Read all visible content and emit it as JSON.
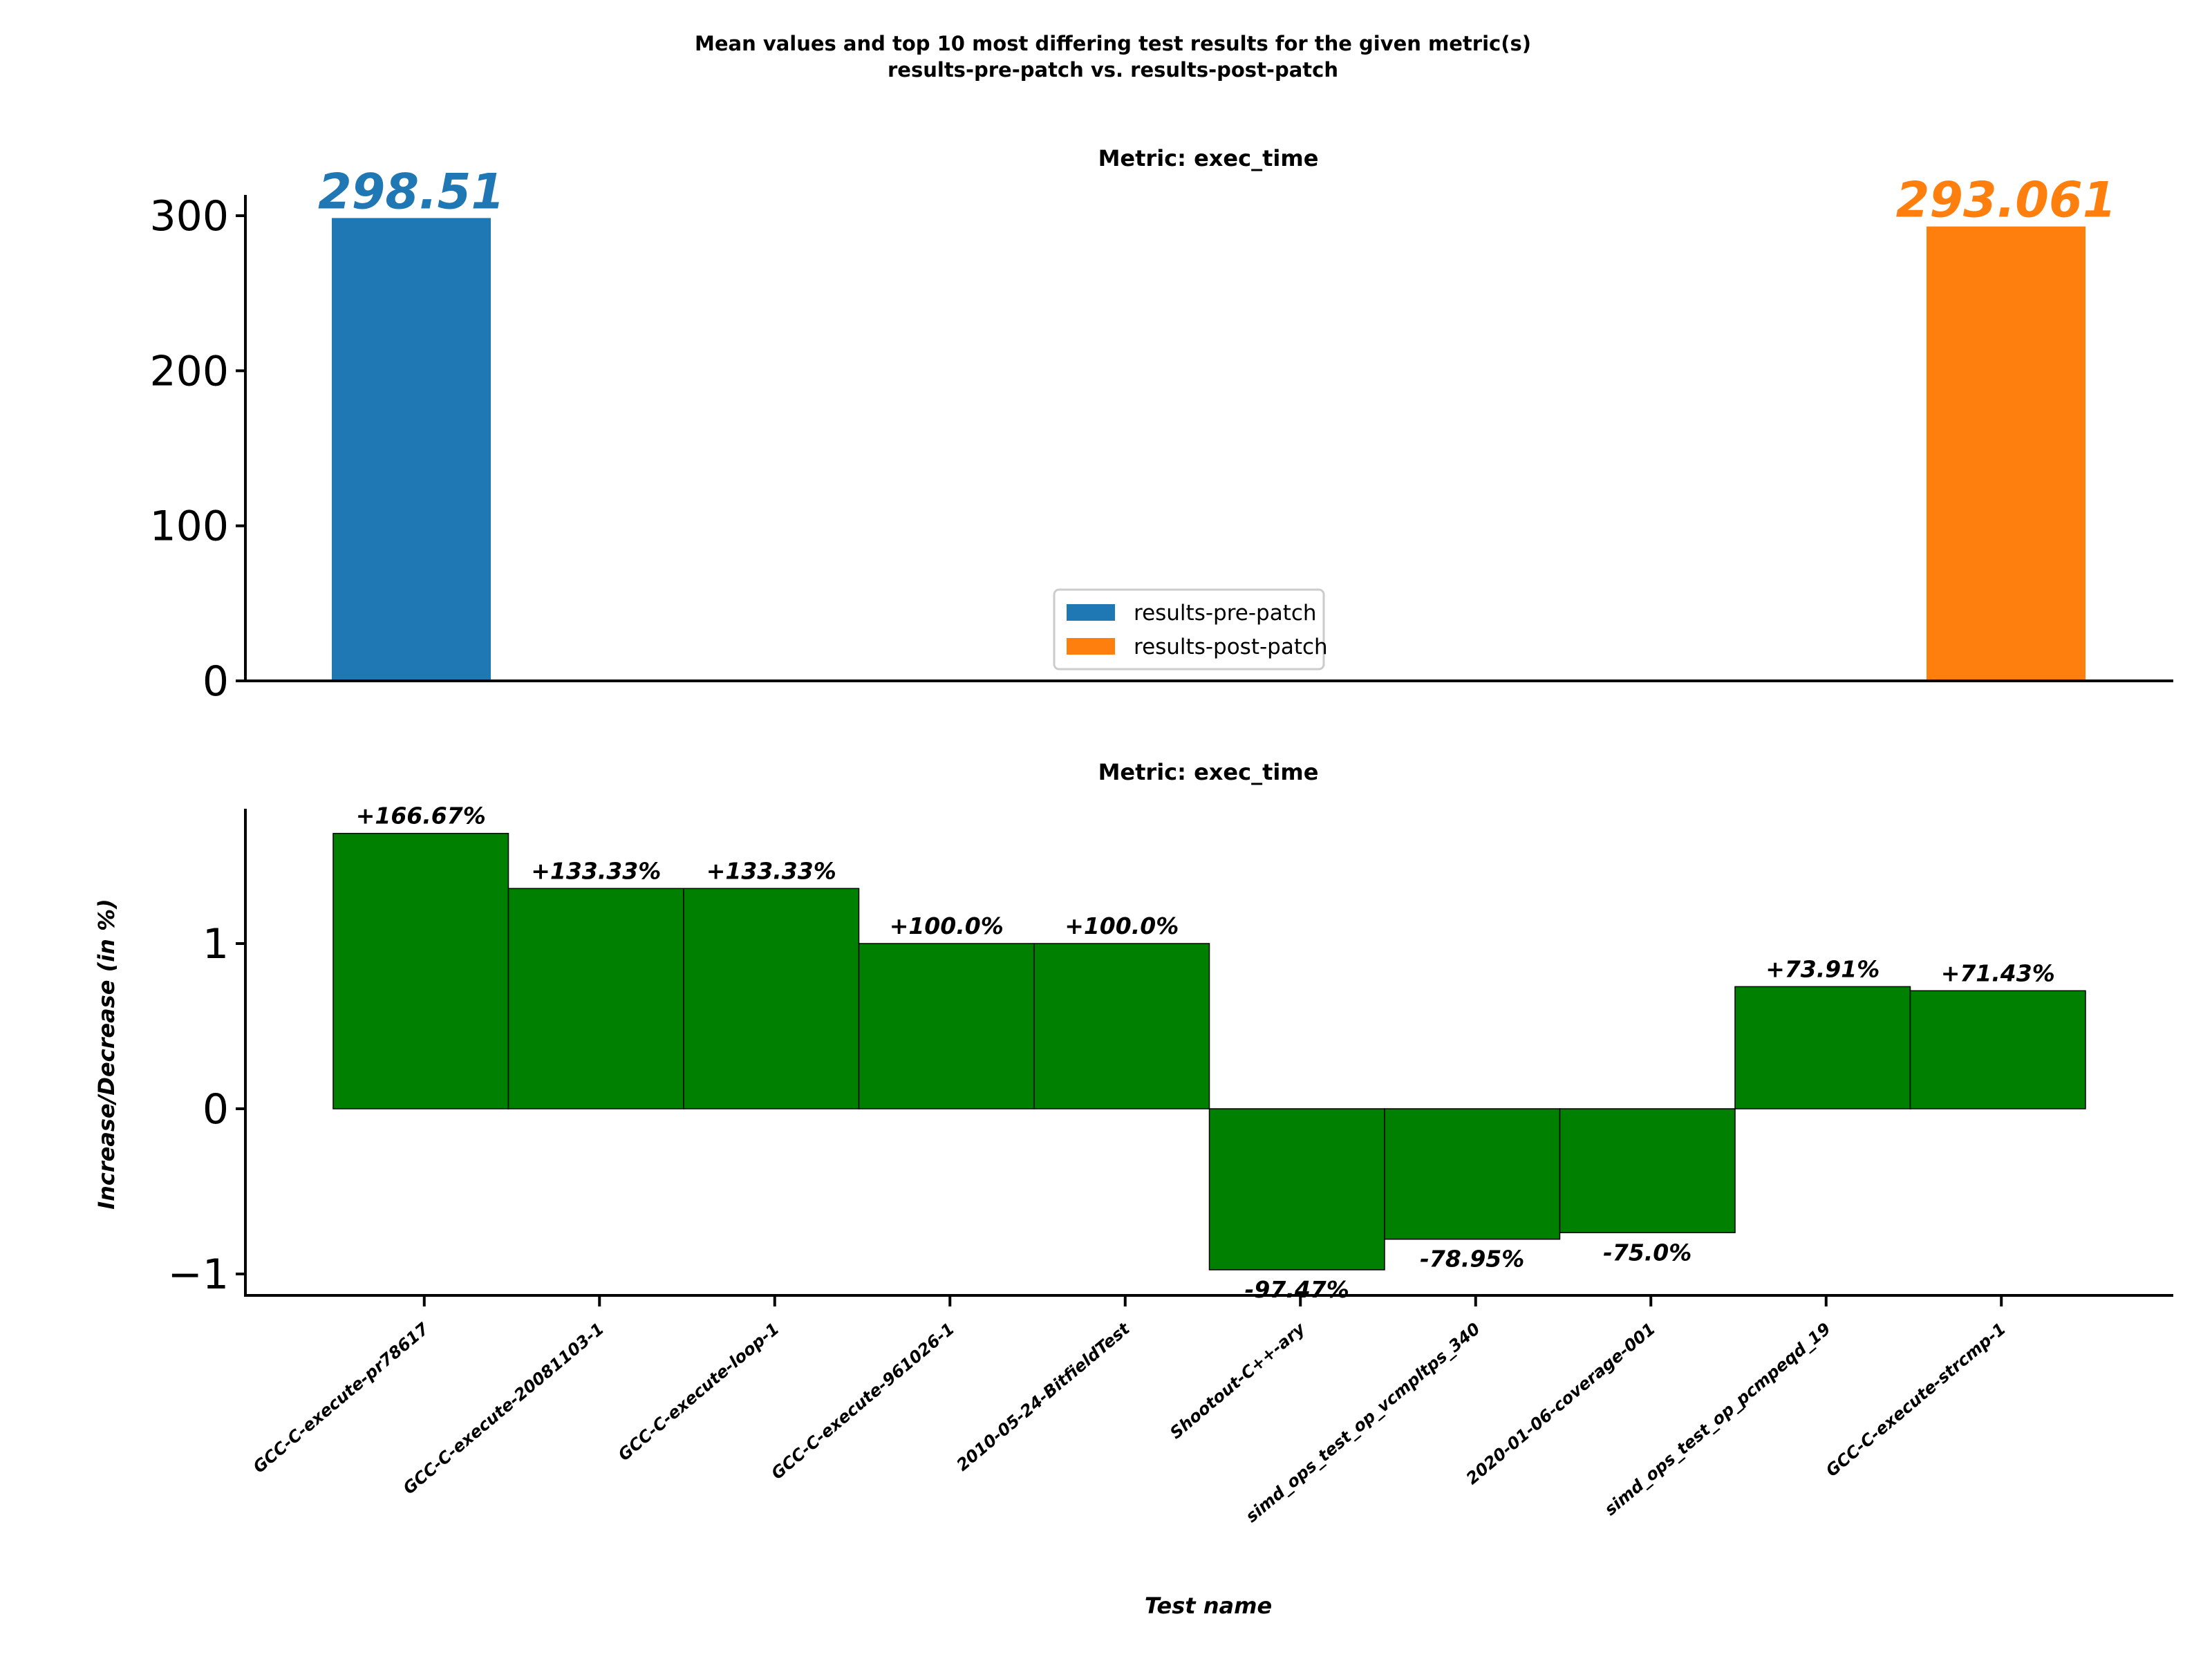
{
  "title_line1": "Mean values and top 10 most differing test results for the given metric(s)",
  "title_line2": "results-pre-patch vs. results-post-patch",
  "colors": {
    "pre": "#1f77b4",
    "post": "#ff7f0e",
    "diff": "#008000"
  },
  "chart_data": [
    {
      "type": "bar",
      "title": "Metric: exec_time",
      "series": [
        {
          "name": "results-pre-patch",
          "values": [
            298.51
          ]
        },
        {
          "name": "results-post-patch",
          "values": [
            293.061
          ]
        }
      ],
      "data_labels": [
        "298.51",
        "293.061"
      ],
      "yticks": [
        "0",
        "100",
        "200",
        "300"
      ],
      "ylim": [
        0,
        313.4
      ],
      "legend_position": "center-bottom"
    },
    {
      "type": "bar",
      "title": "Metric: exec_time",
      "xlabel": "Test name",
      "ylabel": "Increase/Decrease (in %)",
      "categories": [
        "GCC-C-execute-pr78617",
        "GCC-C-execute-20081103-1",
        "GCC-C-execute-loop-1",
        "GCC-C-execute-961026-1",
        "2010-05-24-BitfieldTest",
        "Shootout-C++-ary",
        "simd_ops_test_op_vcmpltps_340",
        "2020-01-06-coverage-001",
        "simd_ops_test_op_pcmpeqd_19",
        "GCC-C-execute-strcmp-1"
      ],
      "values": [
        1.6667,
        1.3333,
        1.3333,
        1.0,
        1.0,
        -0.9747,
        -0.7895,
        -0.75,
        0.7391,
        0.7143
      ],
      "data_labels": [
        "+166.67%",
        "+133.33%",
        "+133.33%",
        "+100.0%",
        "+100.0%",
        "-97.47%",
        "-78.95%",
        "-75.0%",
        "+73.91%",
        "+71.43%"
      ],
      "yticks": [
        "−1",
        "0",
        "1"
      ],
      "ylim": [
        -1.11,
        1.8
      ]
    }
  ]
}
